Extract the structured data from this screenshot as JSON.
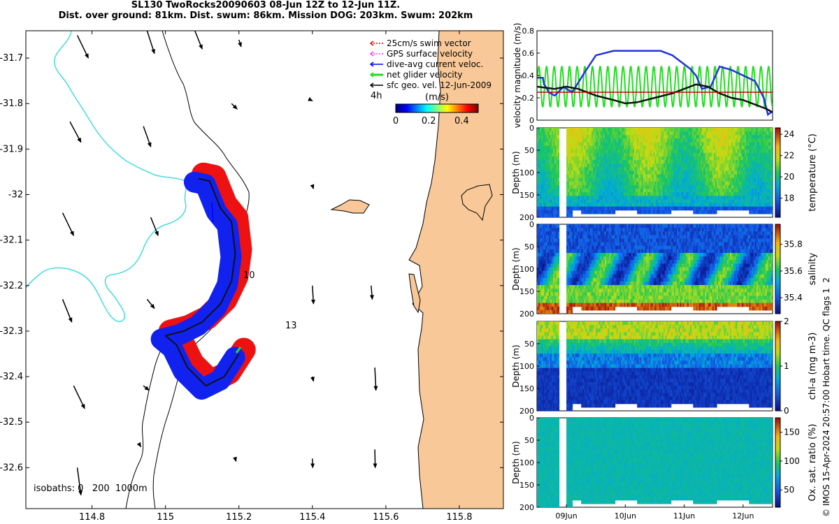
{
  "header": {
    "title_line1": "SL130 TwoRocks20090603 08-Jun 12Z to 12-Jun 11Z.",
    "title_line2": "Dist. over ground: 81km. Dist. swum: 86km. Mission DOG: 203km. Swum: 202km"
  },
  "side_credit": "© IMOS 15-Apr-2024 20:57:00 Hobart time. QC flags 1  2",
  "colors": {
    "land": "#f8c898",
    "isobath_200": "#44dddd",
    "swim_vector": "#dd0000",
    "gps_velocity": "#ff33ff",
    "dive_avg_current": "#0000ff",
    "net_glider": "#22dd22",
    "sfc_geo": "#000000",
    "track_red": "#ee1111",
    "track_blue": "#1122ee"
  },
  "chart_data": [
    {
      "type": "map",
      "name": "glider track map",
      "xlim": [
        114.62,
        115.92
      ],
      "ylim": [
        -32.69,
        -31.64
      ],
      "x_ticks": [
        "114.8",
        "115",
        "115.2",
        "115.4",
        "115.6",
        "115.8"
      ],
      "x_tick_values": [
        114.8,
        115.0,
        115.2,
        115.4,
        115.6,
        115.8
      ],
      "y_ticks": [
        "-31.7",
        "-31.8",
        "-31.9",
        "-32",
        "-32.1",
        "-32.2",
        "-32.3",
        "-32.4",
        "-32.5",
        "-32.6"
      ],
      "y_tick_values": [
        -31.7,
        -31.8,
        -31.9,
        -32.0,
        -32.1,
        -32.2,
        -32.3,
        -32.4,
        -32.5,
        -32.6
      ],
      "legend": [
        {
          "label": "25cm/s swim vector",
          "color": "#dd0000",
          "style": "dotted"
        },
        {
          "label": "GPS surface velocity",
          "color": "#ff33ff",
          "style": "dotted"
        },
        {
          "label": "dive-avg current veloc.",
          "color": "#0000ff",
          "style": "solid"
        },
        {
          "label": "net glider velocity",
          "color": "#22dd22",
          "style": "thick"
        },
        {
          "label": "sfc geo. vel. 12-Jun-2009",
          "color": "#000000",
          "style": "solid"
        }
      ],
      "legend_position": "top-right",
      "reference_arrow_label": "4h",
      "colorbar": {
        "label": "(m/s)",
        "ticks": [
          "0",
          "0.2",
          "0.4"
        ],
        "tick_values": [
          0,
          0.2,
          0.4
        ],
        "range": [
          0,
          0.5
        ]
      },
      "annotations": [
        {
          "text": "10",
          "lon": 115.21,
          "lat": -32.18
        },
        {
          "text": "13",
          "lon": 115.34,
          "lat": -32.275
        }
      ],
      "isobath_label": "isobaths: 0   200  1000m",
      "track": [
        [
          115.09,
          -31.965
        ],
        [
          115.12,
          -31.97
        ],
        [
          115.15,
          -32.03
        ],
        [
          115.18,
          -32.06
        ],
        [
          115.19,
          -32.13
        ],
        [
          115.18,
          -32.19
        ],
        [
          115.15,
          -32.24
        ],
        [
          115.1,
          -32.28
        ],
        [
          115.05,
          -32.3
        ],
        [
          115.0,
          -32.31
        ],
        [
          115.03,
          -32.33
        ],
        [
          115.06,
          -32.38
        ],
        [
          115.11,
          -32.42
        ],
        [
          115.16,
          -32.4
        ],
        [
          115.2,
          -32.35
        ]
      ],
      "geo_vectors": [
        [
          114.76,
          -31.65,
          0.03,
          -0.05
        ],
        [
          114.95,
          -31.64,
          0.02,
          -0.05
        ],
        [
          115.08,
          -31.64,
          0.02,
          -0.04
        ],
        [
          115.2,
          -31.66,
          0.006,
          -0.015
        ],
        [
          114.74,
          -31.84,
          0.03,
          -0.045
        ],
        [
          114.94,
          -31.85,
          0.02,
          -0.045
        ],
        [
          115.18,
          -31.8,
          0.015,
          -0.012
        ],
        [
          115.39,
          -31.79,
          0.01,
          -0.004
        ],
        [
          114.72,
          -32.04,
          0.03,
          -0.05
        ],
        [
          114.96,
          -32.05,
          0.02,
          -0.04
        ],
        [
          115.4,
          -31.98,
          0.003,
          -0.007
        ],
        [
          114.72,
          -32.23,
          0.025,
          -0.05
        ],
        [
          114.95,
          -32.23,
          0.02,
          -0.02
        ],
        [
          115.4,
          -32.2,
          0.003,
          -0.04
        ],
        [
          115.56,
          -32.2,
          0.003,
          -0.03
        ],
        [
          114.94,
          -32.42,
          0.015,
          -0.01
        ],
        [
          115.18,
          -32.4,
          0.006,
          -0.005
        ],
        [
          115.4,
          -32.4,
          0.003,
          -0.01
        ],
        [
          115.57,
          -32.38,
          0.003,
          -0.05
        ],
        [
          114.75,
          -32.42,
          0.03,
          -0.05
        ],
        [
          114.93,
          -32.55,
          0.003,
          -0.004
        ],
        [
          115.19,
          -32.58,
          0.002,
          -0.006
        ],
        [
          115.4,
          -32.58,
          0.001,
          -0.02
        ],
        [
          115.57,
          -32.56,
          0.001,
          -0.04
        ],
        [
          114.76,
          -32.6,
          0.01,
          -0.06
        ]
      ]
    },
    {
      "type": "line",
      "name": "velocity magnitude",
      "ylabel": "velocity magnitude (m/s)",
      "ylim": [
        0,
        0.8
      ],
      "y_ticks": [
        "0",
        "0.2",
        "0.4",
        "0.6",
        "0.8"
      ],
      "x_range_days": [
        8.5,
        12.5
      ],
      "series": [
        {
          "color": "#2233dd",
          "x": [
            8.5,
            8.6,
            8.62,
            8.65,
            8.7,
            8.8,
            8.88,
            8.95,
            9.0,
            9.1,
            9.3,
            9.5,
            9.8,
            10.0,
            10.3,
            10.6,
            10.8,
            11.0,
            11.1,
            11.2,
            11.3,
            11.45,
            11.6,
            11.8,
            12.0,
            12.2,
            12.35,
            12.42,
            12.5
          ],
          "values": [
            0.38,
            0.38,
            0.32,
            0.3,
            0.25,
            0.22,
            0.26,
            0.3,
            0.28,
            0.25,
            0.42,
            0.58,
            0.62,
            0.62,
            0.62,
            0.62,
            0.58,
            0.5,
            0.46,
            0.4,
            0.28,
            0.3,
            0.48,
            0.45,
            0.4,
            0.35,
            0.2,
            0.05,
            0.08
          ]
        },
        {
          "color": "#111111",
          "x": [
            8.5,
            8.8,
            9.0,
            9.2,
            9.5,
            9.8,
            10.0,
            10.2,
            10.5,
            10.8,
            11.0,
            11.2,
            11.4,
            11.6,
            11.8,
            12.0,
            12.2,
            12.4,
            12.5
          ],
          "values": [
            0.3,
            0.28,
            0.3,
            0.28,
            0.22,
            0.18,
            0.15,
            0.16,
            0.2,
            0.24,
            0.28,
            0.32,
            0.3,
            0.24,
            0.2,
            0.18,
            0.14,
            0.1,
            0.07
          ]
        },
        {
          "color": "#cc0000",
          "x": [
            8.5,
            12.5
          ],
          "values": [
            0.25,
            0.25
          ]
        }
      ],
      "oscillating_series": {
        "color": "#22dd22",
        "mean": 0.3,
        "amplitude": 0.18,
        "period_days": 0.13,
        "start": 8.5,
        "end": 12.5
      }
    },
    {
      "type": "heatmap",
      "name": "temperature section",
      "ylabel": "Depth (m)",
      "ylim": [
        200,
        0
      ],
      "y_ticks": [
        "0",
        "50",
        "100",
        "150",
        "200"
      ],
      "colorbar_label": "temperature (°C)",
      "colorbar_ticks": [
        "18",
        "20",
        "22",
        "24"
      ],
      "colorbar_range": [
        16.2,
        24.6
      ]
    },
    {
      "type": "heatmap",
      "name": "salinity section",
      "ylabel": "Depth (m)",
      "ylim": [
        200,
        0
      ],
      "y_ticks": [
        "0",
        "50",
        "100",
        "150",
        "200"
      ],
      "colorbar_label": "salinity",
      "colorbar_ticks": [
        "35.4",
        "35.6",
        "35.8"
      ],
      "colorbar_range": [
        35.28,
        35.95
      ]
    },
    {
      "type": "heatmap",
      "name": "chlorophyll section",
      "ylabel": "Depth (m)",
      "ylim": [
        200,
        0
      ],
      "y_ticks": [
        "50",
        "100",
        "150",
        "200"
      ],
      "colorbar_label": "chl-a (mg m-3)",
      "colorbar_ticks": [
        "0",
        "1",
        "2"
      ],
      "colorbar_range": [
        0,
        2
      ]
    },
    {
      "type": "heatmap",
      "name": "oxygen section",
      "ylabel": "Depth (m)",
      "ylim": [
        200,
        0
      ],
      "y_ticks": [
        "0",
        "50",
        "100",
        "150",
        "200"
      ],
      "colorbar_label": "Ox. sat. ratio (%)",
      "colorbar_ticks": [
        "50",
        "100",
        "150"
      ],
      "colorbar_range": [
        20,
        175
      ],
      "x_ticks": [
        "09Jun",
        "10Jun",
        "11Jun",
        "12Jun"
      ],
      "x_tick_values": [
        9,
        10,
        11,
        12
      ]
    }
  ]
}
